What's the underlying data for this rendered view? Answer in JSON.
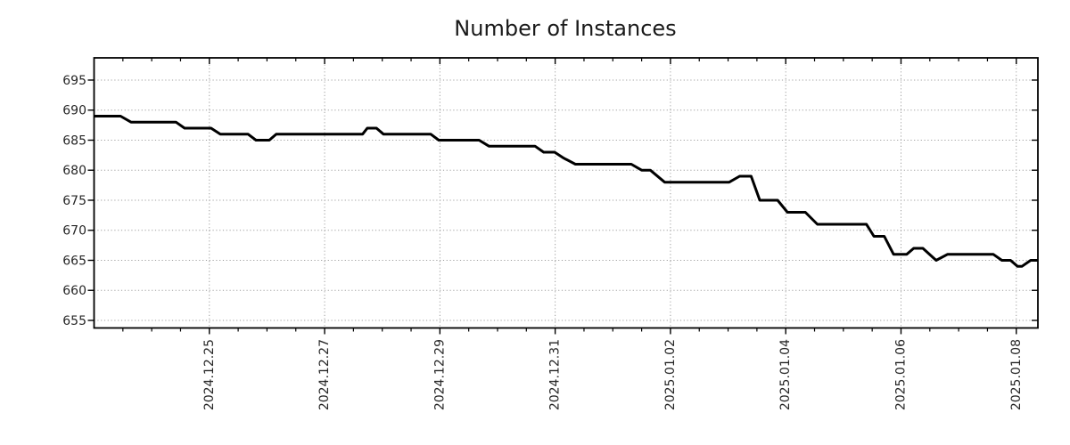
{
  "figure": {
    "title": "Number of Instances"
  },
  "style": {
    "background": "#ffffff",
    "text_color": "#262626",
    "axis_color": "#000000",
    "grid_color": "#9e9e9e",
    "line_color": "#000000"
  },
  "chart_data": {
    "type": "line",
    "title": "Number of Instances",
    "legend": "none",
    "x_axis": {
      "unit": "days since 2024-12-23 00:00",
      "lim": [
        0,
        16.375
      ],
      "minor_tick_interval": 0.5,
      "tick_label_rotation_deg": 90,
      "major_ticks": [
        {
          "t": 2,
          "label": "2024.12.25"
        },
        {
          "t": 4,
          "label": "2024.12.27"
        },
        {
          "t": 6,
          "label": "2024.12.29"
        },
        {
          "t": 8,
          "label": "2024.12.31"
        },
        {
          "t": 10,
          "label": "2025.01.02"
        },
        {
          "t": 12,
          "label": "2025.01.04"
        },
        {
          "t": 14,
          "label": "2025.01.06"
        },
        {
          "t": 16,
          "label": "2025.01.08"
        }
      ]
    },
    "y_axis": {
      "lim": [
        653.74,
        698.7
      ],
      "major_ticks": [
        655,
        660,
        665,
        670,
        675,
        680,
        685,
        690,
        695
      ]
    },
    "grid": {
      "style": "dotted",
      "major_x": true,
      "major_y": true
    },
    "series": [
      {
        "name": "instances",
        "color": "#000000",
        "points": [
          [
            0.0,
            689
          ],
          [
            0.46,
            689
          ],
          [
            0.64,
            688
          ],
          [
            1.42,
            688
          ],
          [
            1.57,
            687
          ],
          [
            2.03,
            687
          ],
          [
            2.19,
            686
          ],
          [
            2.67,
            686
          ],
          [
            2.81,
            685
          ],
          [
            3.04,
            685
          ],
          [
            3.16,
            686
          ],
          [
            4.66,
            686
          ],
          [
            4.74,
            687
          ],
          [
            4.9,
            687
          ],
          [
            5.02,
            686
          ],
          [
            5.84,
            686
          ],
          [
            5.98,
            685
          ],
          [
            6.68,
            685
          ],
          [
            6.85,
            684
          ],
          [
            7.65,
            684
          ],
          [
            7.8,
            683
          ],
          [
            7.99,
            683
          ],
          [
            8.15,
            682
          ],
          [
            8.35,
            681
          ],
          [
            9.32,
            681
          ],
          [
            9.5,
            680
          ],
          [
            9.65,
            680
          ],
          [
            9.9,
            678
          ],
          [
            11.02,
            678
          ],
          [
            11.2,
            679
          ],
          [
            11.4,
            679
          ],
          [
            11.55,
            675
          ],
          [
            11.86,
            675
          ],
          [
            12.03,
            673
          ],
          [
            12.34,
            673
          ],
          [
            12.55,
            671
          ],
          [
            13.4,
            671
          ],
          [
            13.53,
            669
          ],
          [
            13.71,
            669
          ],
          [
            13.87,
            666
          ],
          [
            14.1,
            666
          ],
          [
            14.22,
            667
          ],
          [
            14.38,
            667
          ],
          [
            14.61,
            665
          ],
          [
            14.81,
            666
          ],
          [
            15.6,
            666
          ],
          [
            15.75,
            665
          ],
          [
            15.9,
            665
          ],
          [
            16.02,
            664
          ],
          [
            16.1,
            664
          ],
          [
            16.25,
            665
          ],
          [
            16.375,
            665
          ]
        ]
      }
    ]
  }
}
